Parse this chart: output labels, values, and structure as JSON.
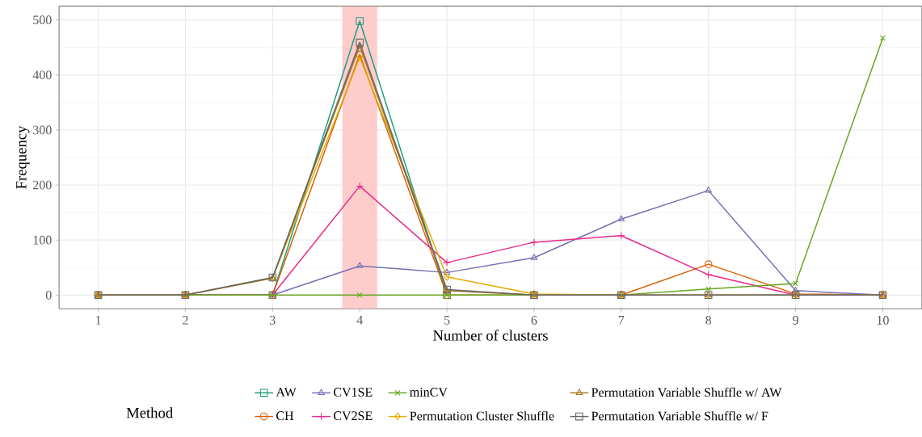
{
  "chart_data": {
    "type": "line",
    "xlabel": "Number of clusters",
    "ylabel": "Frequency",
    "legend_title": "Method",
    "x": [
      1,
      2,
      3,
      4,
      5,
      6,
      7,
      8,
      9,
      10
    ],
    "xlim": [
      0.55,
      10.45
    ],
    "xticks": [
      1,
      2,
      3,
      4,
      5,
      6,
      7,
      8,
      9,
      10
    ],
    "ylim": [
      -25,
      525
    ],
    "yticks": [
      0,
      100,
      200,
      300,
      400,
      500
    ],
    "grid": true,
    "legend": "bottom",
    "line_style": "solid",
    "bands": [
      {
        "axis": "x",
        "from": 3.8,
        "to": 4.2,
        "color": "#ffcccc"
      }
    ],
    "series": [
      {
        "name": "AW",
        "color": "#1b9e77",
        "marker": "square",
        "values": [
          null,
          null,
          0,
          498,
          0,
          null,
          null,
          null,
          null,
          null
        ]
      },
      {
        "name": "CH",
        "color": "#d95f02",
        "marker": "circle",
        "values": [
          0,
          0,
          0,
          437,
          0,
          0,
          0,
          56,
          2,
          0
        ]
      },
      {
        "name": "CV1SE",
        "color": "#7570b3",
        "marker": "triangle",
        "values": [
          0,
          0,
          0,
          53,
          41,
          68,
          138,
          190,
          8,
          0
        ]
      },
      {
        "name": "CV2SE",
        "color": "#e7298a",
        "marker": "plus",
        "values": [
          0,
          0,
          0,
          198,
          59,
          96,
          108,
          37,
          0,
          0
        ]
      },
      {
        "name": "minCV",
        "color": "#66a61e",
        "marker": "cross",
        "values": [
          0,
          0,
          0,
          0,
          0,
          0,
          0,
          11,
          21,
          467
        ]
      },
      {
        "name": "Permutation Cluster Shuffle",
        "color": "#e6ab02",
        "marker": "diamond",
        "values": [
          0,
          0,
          31,
          432,
          33,
          2,
          0,
          0,
          0,
          0
        ]
      },
      {
        "name": "Permutation Variable Shuffle w/ AW",
        "color": "#a6761d",
        "marker": "triangle-down",
        "values": [
          0,
          0,
          31,
          453,
          8,
          0,
          0,
          0,
          0,
          0
        ]
      },
      {
        "name": "Permutation Variable Shuffle w/ F",
        "color": "#666666",
        "marker": "square",
        "values": [
          0,
          0,
          32,
          459,
          10,
          0,
          0,
          0,
          0,
          0
        ]
      }
    ]
  }
}
